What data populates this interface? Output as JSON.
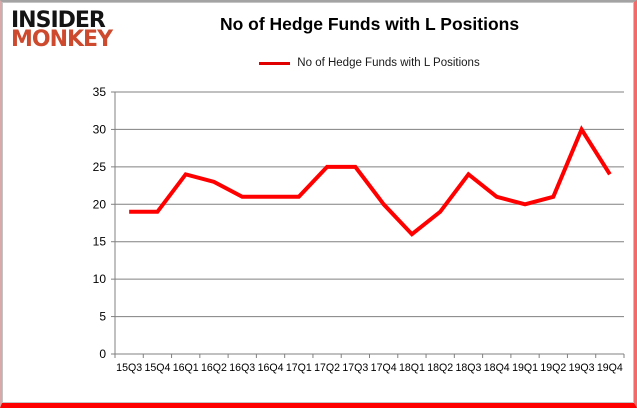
{
  "brand": {
    "line1": "INSIDER",
    "line2": "MONKEY",
    "color_line1": "#141414",
    "color_line2": "#cd4a2e"
  },
  "header": {
    "title": "No of Hedge Funds with L Positions"
  },
  "legend": {
    "label": "No of Hedge Funds with L Positions",
    "color": "#e00000",
    "position": "top"
  },
  "chart_data": {
    "type": "line",
    "title": "No of Hedge Funds with L Positions",
    "categories": [
      "15Q3",
      "15Q4",
      "16Q1",
      "16Q2",
      "16Q3",
      "16Q4",
      "17Q1",
      "17Q2",
      "17Q3",
      "17Q4",
      "18Q1",
      "18Q2",
      "18Q3",
      "18Q4",
      "19Q1",
      "19Q2",
      "19Q3",
      "19Q4"
    ],
    "series": [
      {
        "name": "No of Hedge Funds with L Positions",
        "color": "#ff0000",
        "values": [
          19,
          19,
          24,
          23,
          21,
          21,
          21,
          25,
          25,
          20,
          16,
          19,
          24,
          21,
          20,
          21,
          30,
          24
        ]
      }
    ],
    "xlabel": "",
    "ylabel": "",
    "ylim": [
      0,
      35
    ],
    "ytick_step": 5,
    "yticks": [
      0,
      5,
      10,
      15,
      20,
      25,
      30,
      35
    ],
    "grid": true,
    "gridline_color": "#808080",
    "axis_text_color": "#000000",
    "legend_position": "top"
  }
}
